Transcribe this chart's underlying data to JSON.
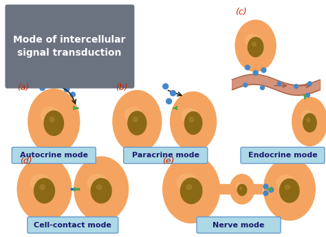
{
  "title": "Mode of intercellular\nsignal transduction",
  "title_bg": "#6b7280",
  "title_color": "white",
  "cell_color": "#f4a460",
  "cell_color2": "#e8955a",
  "nucleus_color": "#8B6914",
  "nucleus_color2": "#6b4f10",
  "signal_color": "#4488cc",
  "receptor_color": "#4aaa44",
  "label_bg": "#87CEEB",
  "label_color": "#1a1a6e",
  "label_bg2": "#add8e6",
  "red_label_color": "#cc2200",
  "arrow_color": "#222222",
  "blood_vessel_color": "#c87050",
  "labels": [
    "Autocrine mode",
    "Paracrine mode",
    "Endocrine mode",
    "Cell-contact mode",
    "Nerve mode"
  ],
  "panel_labels": [
    "(a)",
    "(b)",
    "(c)",
    "(d)",
    "(e)"
  ]
}
